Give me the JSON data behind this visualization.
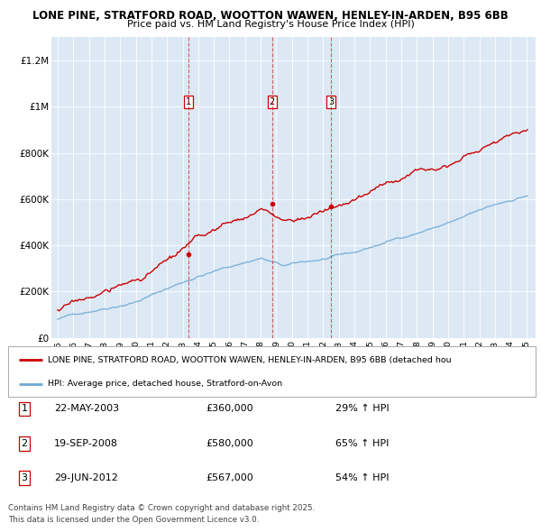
{
  "title1": "LONE PINE, STRATFORD ROAD, WOOTTON WAWEN, HENLEY-IN-ARDEN, B95 6BB",
  "title2": "Price paid vs. HM Land Registry's House Price Index (HPI)",
  "ylim": [
    0,
    1300000
  ],
  "yticks": [
    0,
    200000,
    400000,
    600000,
    800000,
    1000000,
    1200000
  ],
  "ytick_labels": [
    "£0",
    "£200K",
    "£400K",
    "£600K",
    "£800K",
    "£1M",
    "£1.2M"
  ],
  "hpi_color": "#6fa8d4",
  "price_color": "#cc0000",
  "transactions": [
    {
      "label": "1",
      "date_num": 2003.38,
      "price": 360000,
      "pct": "29%",
      "date_str": "22-MAY-2003"
    },
    {
      "label": "2",
      "date_num": 2008.72,
      "price": 580000,
      "pct": "65%",
      "date_str": "19-SEP-2008"
    },
    {
      "label": "3",
      "date_num": 2012.49,
      "price": 567000,
      "pct": "54%",
      "date_str": "29-JUN-2012"
    }
  ],
  "legend_house_label": "LONE PINE, STRATFORD ROAD, WOOTTON WAWEN, HENLEY-IN-ARDEN, B95 6BB (detached hou",
  "legend_hpi_label": "HPI: Average price, detached house, Stratford-on-Avon",
  "footer1": "Contains HM Land Registry data © Crown copyright and database right 2025.",
  "footer2": "This data is licensed under the Open Government Licence v3.0.",
  "plot_bg_color": "#dce9f5"
}
